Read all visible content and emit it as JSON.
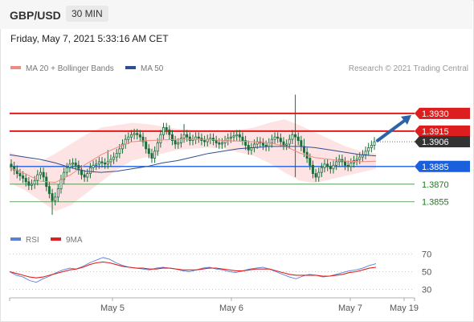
{
  "header": {
    "symbol": "GBP/USD",
    "interval": "30 MIN"
  },
  "timestamp": "Friday, May 7, 2021 5:33:16 AM CET",
  "legend": {
    "bollinger": {
      "label": "MA 20 + Bollinger Bands",
      "color": "#f08a84"
    },
    "ma50": {
      "label": "MA 50",
      "color": "#2f4f8f"
    },
    "rsi": {
      "label": "RSI",
      "color": "#5b7fd6"
    },
    "rsi_ma": {
      "label": "9MA",
      "color": "#e02020"
    }
  },
  "copyright": "Research © 2021 Trading Central",
  "colors": {
    "resistance": "#dc1e1e",
    "support_main": "#1a5fdc",
    "support_minor": "#5a9a5a",
    "candle": "#1a6e3a",
    "arrow": "#2e63a8",
    "current": "#333333"
  },
  "chart_data": [
    {
      "type": "candlestick",
      "title": "GBP/USD 30 MIN",
      "x_ticks": [
        "May 5",
        "May 6",
        "May 7",
        "May 19"
      ],
      "ylim": [
        1.3835,
        1.396
      ],
      "levels": [
        {
          "label": "1.3930",
          "value": 1.393,
          "kind": "resistance"
        },
        {
          "label": "1.3915",
          "value": 1.3915,
          "kind": "resistance"
        },
        {
          "label": "1.3906",
          "value": 1.3906,
          "kind": "current"
        },
        {
          "label": "1.3885",
          "value": 1.3885,
          "kind": "support_main"
        },
        {
          "label": "1.3870",
          "value": 1.387,
          "kind": "support_minor"
        },
        {
          "label": "1.3855",
          "value": 1.3855,
          "kind": "support_minor"
        }
      ],
      "close_series": [
        1.3885,
        1.3882,
        1.3879,
        1.3877,
        1.3875,
        1.3872,
        1.3869,
        1.387,
        1.3873,
        1.3878,
        1.388,
        1.3876,
        1.3868,
        1.3862,
        1.3856,
        1.3859,
        1.3866,
        1.3874,
        1.388,
        1.3884,
        1.3887,
        1.3888,
        1.3886,
        1.3882,
        1.3878,
        1.3876,
        1.3879,
        1.3884,
        1.3886,
        1.3887,
        1.3889,
        1.3888,
        1.3887,
        1.3889,
        1.3891,
        1.3893,
        1.3896,
        1.39,
        1.3904,
        1.3908,
        1.391,
        1.3912,
        1.3913,
        1.3912,
        1.391,
        1.3906,
        1.39,
        1.3896,
        1.3892,
        1.3898,
        1.3905,
        1.3912,
        1.3918,
        1.3916,
        1.3912,
        1.3907,
        1.3904,
        1.3905,
        1.3909,
        1.3912,
        1.391,
        1.3907,
        1.3908,
        1.391,
        1.3909,
        1.3907,
        1.3906,
        1.3908,
        1.3909,
        1.3907,
        1.3905,
        1.3904,
        1.3905,
        1.3907,
        1.3909,
        1.391,
        1.3911,
        1.3912,
        1.391,
        1.3907,
        1.3903,
        1.3899,
        1.3901,
        1.3904,
        1.3906,
        1.3905,
        1.3903,
        1.3902,
        1.3905,
        1.3908,
        1.391,
        1.3909,
        1.3906,
        1.3903,
        1.3904,
        1.3908,
        1.3912,
        1.391,
        1.3907,
        1.3902,
        1.3897,
        1.3892,
        1.3886,
        1.3879,
        1.3876,
        1.388,
        1.3884,
        1.3887,
        1.3885,
        1.3883,
        1.3886,
        1.3889,
        1.3891,
        1.3889,
        1.3886,
        1.3885,
        1.3888,
        1.389,
        1.3891,
        1.3893,
        1.3895,
        1.3898,
        1.3901,
        1.3903,
        1.3906
      ],
      "ma50": [
        1.3895,
        1.3893,
        1.3891,
        1.3888,
        1.3884,
        1.3881,
        1.388,
        1.3881,
        1.3883,
        1.3885,
        1.3888,
        1.389,
        1.3893,
        1.3896,
        1.3898,
        1.39,
        1.3901,
        1.3902,
        1.3902,
        1.3902,
        1.3901,
        1.3899,
        1.3897,
        1.3895,
        1.3894
      ],
      "bb_upper": [
        1.3897,
        1.3893,
        1.3889,
        1.3896,
        1.3904,
        1.3912,
        1.3918,
        1.392,
        1.3922,
        1.3921,
        1.3919,
        1.3917,
        1.3916,
        1.3915,
        1.3914,
        1.3916,
        1.3918,
        1.3922,
        1.3925,
        1.392,
        1.3914,
        1.3908,
        1.3902,
        1.3898,
        1.3896
      ],
      "bb_lower": [
        1.3871,
        1.3865,
        1.3856,
        1.3847,
        1.3852,
        1.3862,
        1.3872,
        1.3882,
        1.389,
        1.3893,
        1.3896,
        1.3899,
        1.39,
        1.3901,
        1.39,
        1.3897,
        1.3894,
        1.3888,
        1.388,
        1.3873,
        1.3871,
        1.3874,
        1.3877,
        1.388,
        1.3883
      ]
    },
    {
      "type": "line",
      "title": "RSI",
      "y_ticks": [
        "70",
        "50",
        "30"
      ],
      "ylim": [
        25,
        75
      ],
      "series": [
        {
          "name": "RSI",
          "values": [
            50,
            46,
            44,
            40,
            38,
            42,
            45,
            49,
            52,
            54,
            53,
            56,
            60,
            63,
            66,
            64,
            60,
            57,
            55,
            54,
            53,
            52,
            54,
            55,
            54,
            53,
            51,
            50,
            52,
            54,
            55,
            53,
            52,
            50,
            49,
            51,
            53,
            54,
            55,
            53,
            50,
            47,
            44,
            42,
            45,
            47,
            46,
            44,
            45,
            47,
            49,
            51,
            52,
            54,
            57,
            59
          ]
        },
        {
          "name": "9MA",
          "values": [
            50,
            48,
            46,
            44,
            43,
            44,
            46,
            48,
            50,
            52,
            53,
            55,
            58,
            60,
            61,
            60,
            58,
            56,
            55,
            54,
            54,
            53,
            53,
            54,
            54,
            53,
            52,
            52,
            52,
            53,
            54,
            54,
            53,
            52,
            51,
            51,
            52,
            53,
            53,
            53,
            51,
            49,
            47,
            46,
            46,
            46,
            46,
            45,
            45,
            46,
            47,
            49,
            50,
            52,
            54,
            55
          ]
        }
      ]
    }
  ]
}
